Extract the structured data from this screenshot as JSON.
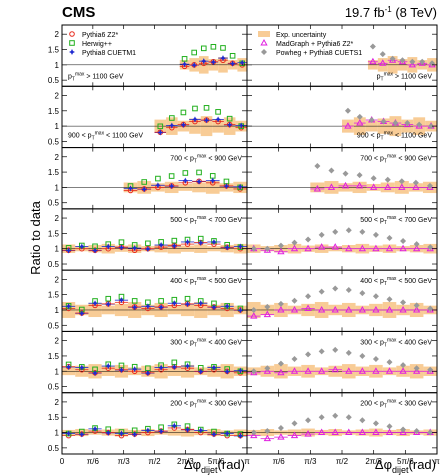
{
  "header": {
    "experiment": "CMS",
    "luminosity_value": "19.7 fb",
    "luminosity_exp": "-1",
    "energy": " (8 TeV)"
  },
  "axis_labels": {
    "ylabel": "Ratio to data",
    "xlabel_main": "Δφ",
    "xlabel_sub": "dijet",
    "xlabel_unit": "(rad)"
  },
  "colors": {
    "pythia_z2": "#e8291c",
    "herwig": "#22b01e",
    "pythia_cuetm1": "#1f2ad0",
    "madgraph": "#e01fe0",
    "powheg": "#999999",
    "uncertainty": "#f8cc96"
  },
  "legend": {
    "left": [
      {
        "key": "pythia_z2",
        "label": "Pythia6 Z2*",
        "marker": "circle"
      },
      {
        "key": "herwig",
        "label": "Herwig++",
        "marker": "square"
      },
      {
        "key": "pythia_cuetm1",
        "label": "Pythia8 CUETM1",
        "marker": "star"
      }
    ],
    "right": [
      {
        "key": "uncertainty",
        "label": "Exp. uncertainty",
        "marker": "box"
      },
      {
        "key": "madgraph",
        "label": "MadGraph + Pythia6 Z2*",
        "marker": "triangle"
      },
      {
        "key": "powheg",
        "label": "Powheg + Pythia8 CUETS1",
        "marker": "diamond"
      }
    ]
  },
  "chart_data": {
    "type": "scatter",
    "xlabel": "Δφdijet (rad)",
    "ylabel": "Ratio to data",
    "xlim": [
      0,
      3.1416
    ],
    "ylim": [
      0.3,
      2.3
    ],
    "x_ticks": [
      {
        "value": 0,
        "label": "0"
      },
      {
        "value": 0.5236,
        "label": "π/6"
      },
      {
        "value": 1.0472,
        "label": "π/3"
      },
      {
        "value": 1.5708,
        "label": "π/2"
      },
      {
        "value": 2.0944,
        "label": "2π/3"
      },
      {
        "value": 2.618,
        "label": "5π/6"
      },
      {
        "value": 3.1416,
        "label": "π"
      }
    ],
    "y_ticks": [
      0.5,
      1,
      1.5,
      2
    ],
    "panels": [
      {
        "label_pre": "",
        "label_post": " > 1100 GeV",
        "xmin": 2.0,
        "bins_base": [
          1.0,
          1.05,
          1.1,
          1.15,
          1.2,
          1.1,
          1.05
        ],
        "herwig_boost": 0.9,
        "unc": 0.22,
        "mg": [
          1.1,
          1.05,
          1.15,
          1.1,
          1.0,
          1.05,
          1.0
        ],
        "pw": [
          1.6,
          1.35,
          1.2,
          1.15,
          1.1,
          1.1,
          1.05
        ]
      },
      {
        "label_pre": "900 < ",
        "label_post": " < 1100 GeV",
        "xmin": 1.5708,
        "bins_base": [
          0.85,
          1.0,
          1.1,
          1.2,
          1.25,
          1.2,
          1.1,
          1.0
        ],
        "herwig_boost": 0.75,
        "unc": 0.25,
        "mg": [
          1.0,
          1.1,
          1.2,
          1.15,
          1.1,
          1.05,
          1.0,
          1.0
        ],
        "pw": [
          1.5,
          1.3,
          1.2,
          1.15,
          1.1,
          1.1,
          1.05,
          1.0
        ]
      },
      {
        "label_pre": "700 < ",
        "label_post": " < 900 GeV",
        "xmin": 1.0472,
        "bins_base": [
          0.95,
          1.0,
          1.05,
          1.1,
          1.2,
          1.25,
          1.2,
          1.1,
          1.0
        ],
        "herwig_boost": 0.55,
        "unc": 0.16,
        "mg": [
          0.95,
          1.0,
          1.05,
          1.05,
          1.0,
          1.0,
          1.0,
          1.0,
          1.0
        ],
        "pw": [
          1.7,
          1.55,
          1.45,
          1.4,
          1.3,
          1.25,
          1.2,
          1.15,
          1.05
        ]
      },
      {
        "label_pre": "500 < ",
        "label_post": " < 700 GeV",
        "xmin": 0.0,
        "bins_base": [
          1.0,
          1.05,
          1.0,
          1.05,
          1.1,
          1.0,
          1.05,
          1.1,
          1.15,
          1.2,
          1.25,
          1.2,
          1.1,
          1.05
        ],
        "herwig_boost": 0.25,
        "unc": 0.12,
        "mg": [
          1.0,
          0.95,
          0.9,
          1.0,
          1.0,
          1.05,
          1.05,
          1.0,
          1.0,
          1.0,
          1.0,
          1.0,
          1.0,
          1.0
        ],
        "pw": [
          1.0,
          1.0,
          1.1,
          1.2,
          1.3,
          1.45,
          1.55,
          1.6,
          1.55,
          1.45,
          1.35,
          1.25,
          1.15,
          1.05
        ]
      },
      {
        "label_pre": "400 < ",
        "label_post": " < 500 GeV",
        "xmin": 0.0,
        "bins_base": [
          1.1,
          0.95,
          1.2,
          1.25,
          1.3,
          1.15,
          1.1,
          1.15,
          1.2,
          1.25,
          1.2,
          1.15,
          1.1,
          1.05
        ],
        "herwig_boost": 0.3,
        "unc": 0.2,
        "mg": [
          0.8,
          0.85,
          1.0,
          1.0,
          1.05,
          1.0,
          1.0,
          1.0,
          1.0,
          1.0,
          1.0,
          1.0,
          1.0,
          1.0
        ],
        "pw": [
          1.0,
          1.1,
          1.2,
          1.3,
          1.45,
          1.6,
          1.7,
          1.65,
          1.55,
          1.45,
          1.35,
          1.25,
          1.15,
          1.05
        ]
      },
      {
        "label_pre": "300 < ",
        "label_post": " < 400 GeV",
        "xmin": 0.0,
        "bins_base": [
          1.2,
          1.1,
          1.0,
          1.15,
          1.1,
          1.05,
          1.0,
          1.1,
          1.2,
          1.15,
          1.05,
          1.1,
          1.05,
          1.0
        ],
        "herwig_boost": 0.2,
        "unc": 0.18,
        "mg": [
          0.95,
          1.0,
          0.95,
          1.0,
          1.0,
          1.0,
          1.05,
          1.0,
          1.0,
          1.0,
          1.0,
          1.0,
          1.0,
          1.0
        ],
        "pw": [
          1.0,
          1.1,
          1.25,
          1.4,
          1.55,
          1.65,
          1.7,
          1.6,
          1.5,
          1.4,
          1.3,
          1.2,
          1.1,
          1.05
        ]
      },
      {
        "label_pre": "200 < ",
        "label_post": " < 300 GeV",
        "xmin": 0.0,
        "bins_base": [
          0.95,
          1.0,
          1.1,
          1.05,
          0.95,
          1.0,
          1.05,
          1.1,
          1.2,
          1.15,
          1.05,
          1.0,
          0.95,
          0.95
        ],
        "herwig_boost": 0.15,
        "unc": 0.1,
        "mg": [
          0.9,
          0.8,
          0.85,
          0.9,
          0.95,
          1.0,
          1.0,
          1.0,
          1.0,
          1.0,
          1.0,
          1.0,
          1.0,
          1.0
        ],
        "pw": [
          1.0,
          1.05,
          1.15,
          1.3,
          1.4,
          1.5,
          1.55,
          1.5,
          1.4,
          1.3,
          1.2,
          1.1,
          1.05,
          1.0
        ]
      }
    ],
    "pt_symbol": "p",
    "pt_sub": "T",
    "pt_sup": "max"
  }
}
